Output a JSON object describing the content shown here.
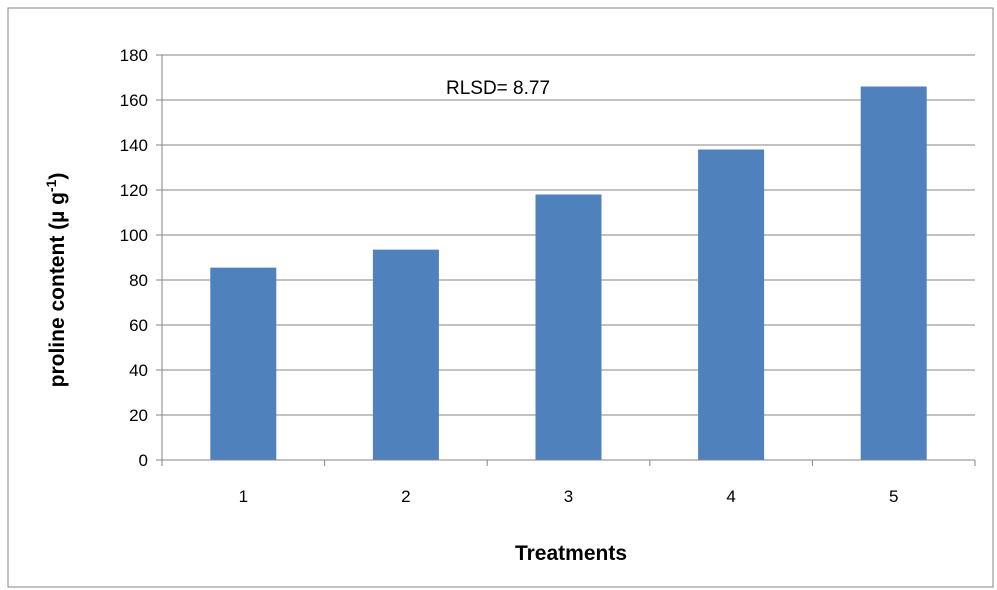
{
  "chart_data": {
    "type": "bar",
    "categories": [
      "1",
      "2",
      "3",
      "4",
      "5"
    ],
    "values": [
      85.5,
      93.5,
      118,
      138,
      166
    ],
    "xlabel": "Treatments",
    "ylabel": "proline content (µ  g",
    "ylabel_superscript": "-1",
    "ylabel_close": ")",
    "ylim": [
      0,
      180
    ],
    "ytick_step": 20,
    "grid": true,
    "legend": "none",
    "annotation": "RLSD= 8.77",
    "bar_color": "#4F81BD",
    "grid_color": "#868686"
  }
}
